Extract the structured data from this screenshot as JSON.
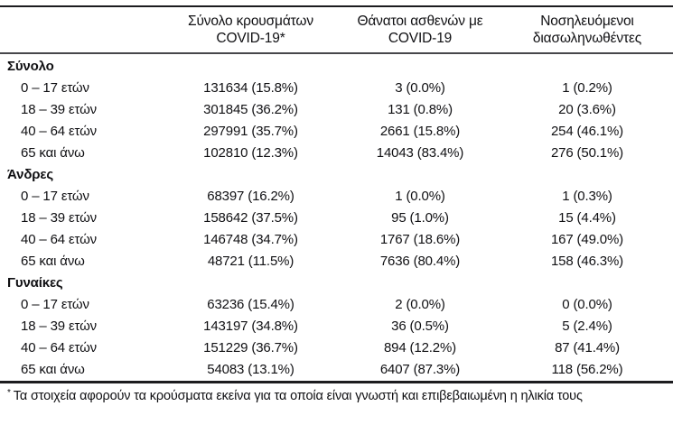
{
  "page": {
    "background": "#ffffff",
    "text_color": "#101013",
    "rule_color_dark": "#1c1c1f",
    "rule_color_mid": "#47474b"
  },
  "table": {
    "headers": [
      {
        "line1": "Σύνολο κρουσμάτων",
        "line2": "COVID-19*"
      },
      {
        "line1": "Θάνατοι ασθενών με",
        "line2": "COVID-19"
      },
      {
        "line1": "Νοσηλευόμενοι",
        "line2": "διασωληνωθέντες"
      }
    ],
    "groups": [
      {
        "label": "Σύνολο",
        "rows": [
          {
            "label": "0 – 17 ετών",
            "cases": "131634 (15.8%)",
            "deaths": "3 (0.0%)",
            "intubated": "1 (0.2%)"
          },
          {
            "label": "18 – 39 ετών",
            "cases": "301845 (36.2%)",
            "deaths": "131 (0.8%)",
            "intubated": "20 (3.6%)"
          },
          {
            "label": "40 – 64 ετών",
            "cases": "297991 (35.7%)",
            "deaths": "2661 (15.8%)",
            "intubated": "254 (46.1%)"
          },
          {
            "label": "65 και άνω",
            "cases": "102810 (12.3%)",
            "deaths": "14043 (83.4%)",
            "intubated": "276 (50.1%)"
          }
        ]
      },
      {
        "label": "Άνδρες",
        "rows": [
          {
            "label": "0 – 17 ετών",
            "cases": "68397 (16.2%)",
            "deaths": "1 (0.0%)",
            "intubated": "1 (0.3%)"
          },
          {
            "label": "18 – 39 ετών",
            "cases": "158642 (37.5%)",
            "deaths": "95 (1.0%)",
            "intubated": "15 (4.4%)"
          },
          {
            "label": "40 – 64 ετών",
            "cases": "146748 (34.7%)",
            "deaths": "1767 (18.6%)",
            "intubated": "167 (49.0%)"
          },
          {
            "label": "65 και άνω",
            "cases": "48721 (11.5%)",
            "deaths": "7636 (80.4%)",
            "intubated": "158 (46.3%)"
          }
        ]
      },
      {
        "label": "Γυναίκες",
        "rows": [
          {
            "label": "0 – 17 ετών",
            "cases": "63236 (15.4%)",
            "deaths": "2 (0.0%)",
            "intubated": "0 (0.0%)"
          },
          {
            "label": "18 – 39 ετών",
            "cases": "143197 (34.8%)",
            "deaths": "36 (0.5%)",
            "intubated": "5 (2.4%)"
          },
          {
            "label": "40 – 64 ετών",
            "cases": "151229 (36.7%)",
            "deaths": "894 (12.2%)",
            "intubated": "87 (41.4%)"
          },
          {
            "label": "65 και άνω",
            "cases": "54083 (13.1%)",
            "deaths": "6407 (87.3%)",
            "intubated": "118 (56.2%)"
          }
        ]
      }
    ],
    "footnote": {
      "marker": "*",
      "text": "Τα στοιχεία αφορούν τα κρούσματα εκείνα για τα οποία είναι γνωστή και επιβεβαιωμένη η ηλικία τους"
    }
  }
}
